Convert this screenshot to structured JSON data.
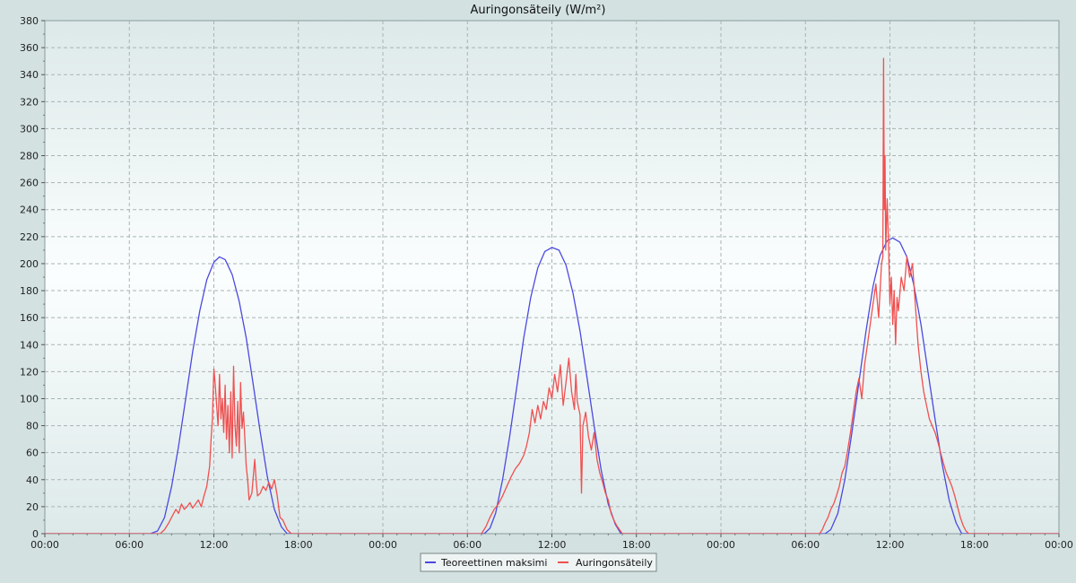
{
  "chart_data": {
    "type": "line",
    "title": "Auringonsäteily (W/m²)",
    "xlabel": "",
    "ylabel": "",
    "ylim": [
      0,
      380
    ],
    "y_ticks": [
      0,
      20,
      40,
      60,
      80,
      100,
      120,
      140,
      160,
      180,
      200,
      220,
      240,
      260,
      280,
      300,
      320,
      340,
      360,
      380
    ],
    "x_range_hours": [
      0,
      72
    ],
    "x_ticks": [
      {
        "h": 0,
        "label": "00:00"
      },
      {
        "h": 6,
        "label": "06:00"
      },
      {
        "h": 12,
        "label": "12:00"
      },
      {
        "h": 18,
        "label": "18:00"
      },
      {
        "h": 24,
        "label": "00:00"
      },
      {
        "h": 30,
        "label": "06:00"
      },
      {
        "h": 36,
        "label": "12:00"
      },
      {
        "h": 42,
        "label": "18:00"
      },
      {
        "h": 48,
        "label": "00:00"
      },
      {
        "h": 54,
        "label": "06:00"
      },
      {
        "h": 60,
        "label": "12:00"
      },
      {
        "h": 66,
        "label": "18:00"
      },
      {
        "h": 72,
        "label": "00:00"
      }
    ],
    "grid": true,
    "legend_position": "bottom-center",
    "series": [
      {
        "name": "Teoreettinen maksimi",
        "color": "#4a4ae0",
        "points": [
          [
            0,
            0
          ],
          [
            7.5,
            0
          ],
          [
            8,
            2
          ],
          [
            8.5,
            12
          ],
          [
            9,
            35
          ],
          [
            9.5,
            65
          ],
          [
            10,
            100
          ],
          [
            10.5,
            135
          ],
          [
            11,
            165
          ],
          [
            11.5,
            188
          ],
          [
            12,
            201
          ],
          [
            12.4,
            205
          ],
          [
            12.8,
            203
          ],
          [
            13.3,
            192
          ],
          [
            13.8,
            172
          ],
          [
            14.3,
            145
          ],
          [
            14.8,
            110
          ],
          [
            15.3,
            75
          ],
          [
            15.8,
            42
          ],
          [
            16.3,
            18
          ],
          [
            16.8,
            5
          ],
          [
            17.2,
            0
          ],
          [
            31.2,
            0
          ],
          [
            31.6,
            4
          ],
          [
            32,
            15
          ],
          [
            32.5,
            40
          ],
          [
            33,
            72
          ],
          [
            33.5,
            108
          ],
          [
            34,
            145
          ],
          [
            34.5,
            175
          ],
          [
            35,
            197
          ],
          [
            35.5,
            209
          ],
          [
            36,
            212
          ],
          [
            36.5,
            210
          ],
          [
            37,
            199
          ],
          [
            37.5,
            178
          ],
          [
            38,
            150
          ],
          [
            38.5,
            115
          ],
          [
            39,
            80
          ],
          [
            39.5,
            47
          ],
          [
            40,
            22
          ],
          [
            40.5,
            7
          ],
          [
            40.9,
            0
          ],
          [
            55.4,
            0
          ],
          [
            55.8,
            3
          ],
          [
            56.3,
            15
          ],
          [
            56.8,
            40
          ],
          [
            57.3,
            75
          ],
          [
            57.8,
            112
          ],
          [
            58.3,
            150
          ],
          [
            58.8,
            183
          ],
          [
            59.3,
            206
          ],
          [
            59.8,
            217
          ],
          [
            60.2,
            219
          ],
          [
            60.7,
            216
          ],
          [
            61.2,
            205
          ],
          [
            61.7,
            184
          ],
          [
            62.2,
            155
          ],
          [
            62.7,
            120
          ],
          [
            63.2,
            85
          ],
          [
            63.7,
            52
          ],
          [
            64.2,
            25
          ],
          [
            64.7,
            8
          ],
          [
            65.1,
            0
          ],
          [
            72,
            0
          ]
        ]
      },
      {
        "name": "Auringonsäteily",
        "color": "#f05050",
        "points": [
          [
            0,
            0
          ],
          [
            8.2,
            0
          ],
          [
            8.5,
            3
          ],
          [
            8.8,
            8
          ],
          [
            9.1,
            14
          ],
          [
            9.3,
            18
          ],
          [
            9.5,
            15
          ],
          [
            9.7,
            22
          ],
          [
            9.9,
            18
          ],
          [
            10.1,
            20
          ],
          [
            10.3,
            23
          ],
          [
            10.5,
            19
          ],
          [
            10.7,
            22
          ],
          [
            10.9,
            25
          ],
          [
            11.1,
            20
          ],
          [
            11.3,
            28
          ],
          [
            11.5,
            35
          ],
          [
            11.7,
            50
          ],
          [
            11.8,
            70
          ],
          [
            11.9,
            85
          ],
          [
            12,
            122
          ],
          [
            12.1,
            110
          ],
          [
            12.2,
            95
          ],
          [
            12.3,
            80
          ],
          [
            12.4,
            118
          ],
          [
            12.5,
            85
          ],
          [
            12.6,
            100
          ],
          [
            12.7,
            75
          ],
          [
            12.8,
            110
          ],
          [
            12.9,
            70
          ],
          [
            13,
            95
          ],
          [
            13.1,
            60
          ],
          [
            13.2,
            105
          ],
          [
            13.3,
            56
          ],
          [
            13.4,
            124
          ],
          [
            13.5,
            80
          ],
          [
            13.6,
            65
          ],
          [
            13.7,
            98
          ],
          [
            13.8,
            60
          ],
          [
            13.9,
            112
          ],
          [
            14,
            78
          ],
          [
            14.1,
            90
          ],
          [
            14.2,
            70
          ],
          [
            14.3,
            50
          ],
          [
            14.4,
            40
          ],
          [
            14.5,
            25
          ],
          [
            14.7,
            30
          ],
          [
            14.9,
            55
          ],
          [
            15,
            40
          ],
          [
            15.1,
            28
          ],
          [
            15.3,
            30
          ],
          [
            15.5,
            35
          ],
          [
            15.7,
            32
          ],
          [
            15.9,
            38
          ],
          [
            16.1,
            33
          ],
          [
            16.3,
            40
          ],
          [
            16.5,
            28
          ],
          [
            16.7,
            12
          ],
          [
            16.9,
            10
          ],
          [
            17.2,
            3
          ],
          [
            17.5,
            0
          ],
          [
            31,
            0
          ],
          [
            31.3,
            5
          ],
          [
            31.6,
            12
          ],
          [
            31.9,
            18
          ],
          [
            32.2,
            22
          ],
          [
            32.5,
            28
          ],
          [
            32.8,
            35
          ],
          [
            33.1,
            42
          ],
          [
            33.4,
            48
          ],
          [
            33.7,
            52
          ],
          [
            34,
            58
          ],
          [
            34.2,
            65
          ],
          [
            34.4,
            75
          ],
          [
            34.6,
            92
          ],
          [
            34.8,
            82
          ],
          [
            35,
            95
          ],
          [
            35.2,
            85
          ],
          [
            35.4,
            98
          ],
          [
            35.6,
            92
          ],
          [
            35.8,
            108
          ],
          [
            36,
            100
          ],
          [
            36.2,
            118
          ],
          [
            36.4,
            105
          ],
          [
            36.6,
            125
          ],
          [
            36.8,
            95
          ],
          [
            37,
            112
          ],
          [
            37.2,
            130
          ],
          [
            37.4,
            105
          ],
          [
            37.6,
            92
          ],
          [
            37.7,
            118
          ],
          [
            37.8,
            98
          ],
          [
            38,
            88
          ],
          [
            38.1,
            30
          ],
          [
            38.2,
            80
          ],
          [
            38.4,
            90
          ],
          [
            38.6,
            72
          ],
          [
            38.8,
            62
          ],
          [
            39,
            75
          ],
          [
            39.2,
            55
          ],
          [
            39.4,
            45
          ],
          [
            39.6,
            38
          ],
          [
            39.8,
            30
          ],
          [
            40,
            25
          ],
          [
            40.2,
            15
          ],
          [
            40.4,
            10
          ],
          [
            40.6,
            6
          ],
          [
            40.8,
            3
          ],
          [
            41,
            0
          ],
          [
            55,
            0
          ],
          [
            55.2,
            3
          ],
          [
            55.4,
            8
          ],
          [
            55.6,
            12
          ],
          [
            55.8,
            18
          ],
          [
            56,
            22
          ],
          [
            56.2,
            28
          ],
          [
            56.4,
            35
          ],
          [
            56.6,
            45
          ],
          [
            56.8,
            50
          ],
          [
            57,
            62
          ],
          [
            57.2,
            75
          ],
          [
            57.4,
            90
          ],
          [
            57.6,
            105
          ],
          [
            57.8,
            115
          ],
          [
            58,
            100
          ],
          [
            58.2,
            125
          ],
          [
            58.4,
            140
          ],
          [
            58.6,
            155
          ],
          [
            58.8,
            170
          ],
          [
            59,
            185
          ],
          [
            59.2,
            160
          ],
          [
            59.4,
            200
          ],
          [
            59.5,
            205
          ],
          [
            59.55,
            352
          ],
          [
            59.6,
            240
          ],
          [
            59.65,
            280
          ],
          [
            59.7,
            210
          ],
          [
            59.8,
            248
          ],
          [
            59.9,
            215
          ],
          [
            60,
            170
          ],
          [
            60.1,
            190
          ],
          [
            60.2,
            155
          ],
          [
            60.3,
            180
          ],
          [
            60.4,
            140
          ],
          [
            60.5,
            175
          ],
          [
            60.6,
            165
          ],
          [
            60.8,
            190
          ],
          [
            61,
            180
          ],
          [
            61.2,
            205
          ],
          [
            61.4,
            190
          ],
          [
            61.6,
            200
          ],
          [
            61.8,
            170
          ],
          [
            62,
            140
          ],
          [
            62.2,
            120
          ],
          [
            62.4,
            105
          ],
          [
            62.6,
            95
          ],
          [
            62.8,
            85
          ],
          [
            63,
            80
          ],
          [
            63.2,
            75
          ],
          [
            63.4,
            68
          ],
          [
            63.6,
            60
          ],
          [
            63.8,
            52
          ],
          [
            64,
            45
          ],
          [
            64.2,
            40
          ],
          [
            64.4,
            35
          ],
          [
            64.6,
            28
          ],
          [
            64.8,
            20
          ],
          [
            65,
            12
          ],
          [
            65.2,
            6
          ],
          [
            65.4,
            2
          ],
          [
            65.6,
            0
          ],
          [
            72,
            0
          ]
        ]
      }
    ]
  }
}
